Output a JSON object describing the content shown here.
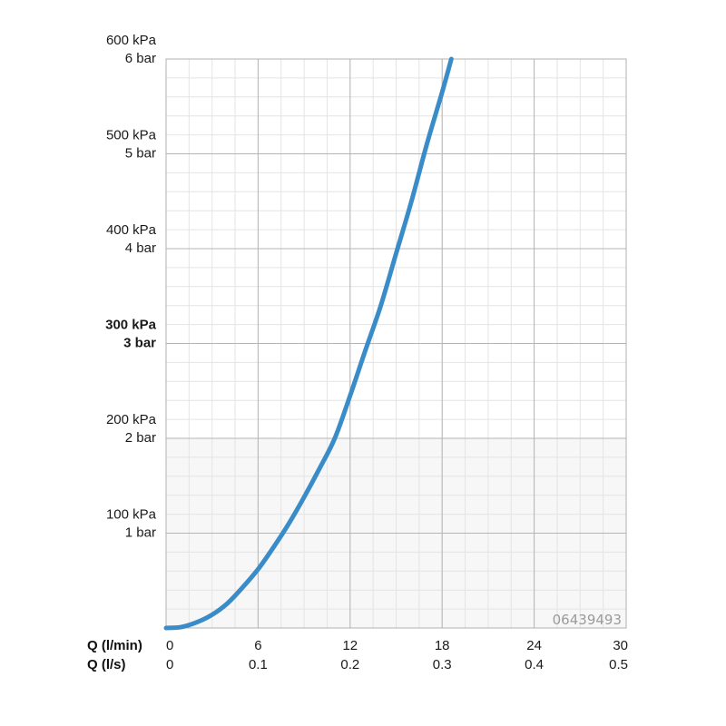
{
  "chart_data": {
    "type": "line",
    "x_axis": {
      "primary_title": "Q (l/min)",
      "secondary_title": "Q (l/s)",
      "ticks_primary": [
        "0",
        "6",
        "12",
        "18",
        "24",
        "30"
      ],
      "ticks_secondary": [
        "0",
        "0.1",
        "0.2",
        "0.3",
        "0.4",
        "0.5"
      ],
      "range": [
        0,
        30
      ]
    },
    "y_axis": {
      "ticks": [
        {
          "value": 100,
          "kpa": "100 kPa",
          "bar": "1 bar",
          "bold": false
        },
        {
          "value": 200,
          "kpa": "200 kPa",
          "bar": "2 bar",
          "bold": false
        },
        {
          "value": 300,
          "kpa": "300 kPa",
          "bar": "3 bar",
          "bold": true
        },
        {
          "value": 400,
          "kpa": "400 kPa",
          "bar": "4 bar",
          "bold": false
        },
        {
          "value": 500,
          "kpa": "500 kPa",
          "bar": "5 bar",
          "bold": false
        },
        {
          "value": 600,
          "kpa": "600 kPa",
          "bar": "6 bar",
          "bold": false
        }
      ],
      "range": [
        0,
        600
      ]
    },
    "grid": true,
    "series": [
      {
        "color": "#3a8cc8",
        "x": [
          0,
          1,
          2,
          3,
          4,
          5,
          6,
          7,
          8,
          9,
          10,
          11,
          12,
          13,
          14,
          15,
          16,
          17,
          18,
          18.6
        ],
        "y": [
          0,
          1,
          6,
          14,
          26,
          43,
          62,
          85,
          110,
          138,
          168,
          200,
          245,
          293,
          340,
          395,
          450,
          510,
          565,
          600
        ]
      }
    ],
    "watermark": "06439493"
  }
}
